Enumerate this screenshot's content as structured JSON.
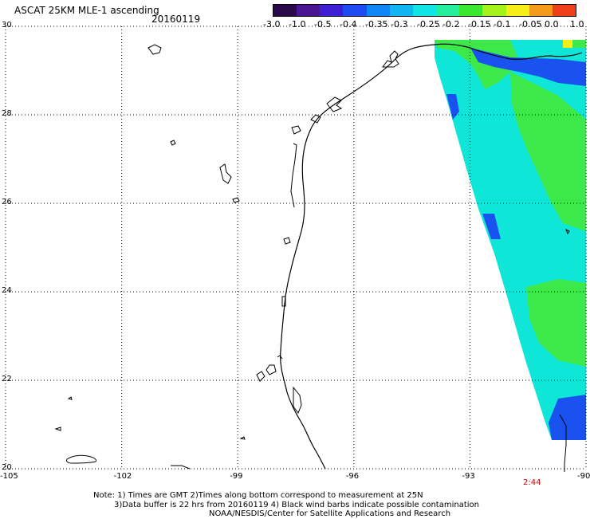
{
  "header": {
    "title": "ASCAT 25KM MLE-1 ascending",
    "date": "20160119"
  },
  "colorbar": {
    "labels": [
      "-3.0",
      "-1.0",
      "-0.5",
      "-0.4",
      "-0.35",
      "-0.3",
      "-0.25",
      "-0.2",
      "-0.15",
      "-0.1",
      "-0.05",
      "0.0",
      "1.0"
    ],
    "colors": [
      "#2a0a4a",
      "#4b1694",
      "#3f1fd3",
      "#1f4cf2",
      "#0f86f6",
      "#11b6f2",
      "#10e6e6",
      "#22ee9b",
      "#3ce82f",
      "#a5f21a",
      "#f5ef17",
      "#f59a1b",
      "#ef3f18"
    ]
  },
  "axes": {
    "lat_labels": [
      "30",
      "28",
      "26",
      "24",
      "22",
      "20"
    ],
    "lon_labels": [
      "-105",
      "-102",
      "-99",
      "-96",
      "-93",
      "-90"
    ],
    "lat_values": [
      30,
      28,
      26,
      24,
      22,
      20
    ],
    "lon_values": [
      -105,
      -102,
      -99,
      -96,
      -93,
      -90
    ]
  },
  "time_label": "2:44",
  "note": {
    "line1": "Note: 1) Times are GMT 2)Times along bottom correspond to measurement at 25N",
    "line2": "3)Data buffer is 22 hrs from 20160119 4) Black wind barbs indicate possible contamination",
    "line3": "NOAA/NESDIS/Center for Satellite Applications and Research"
  },
  "map_colors": {
    "swath_cyan": "#10e6d8",
    "swath_green": "#3ce84a",
    "swath_blue": "#1a52f0",
    "swath_aqua": "#12e6b0"
  }
}
